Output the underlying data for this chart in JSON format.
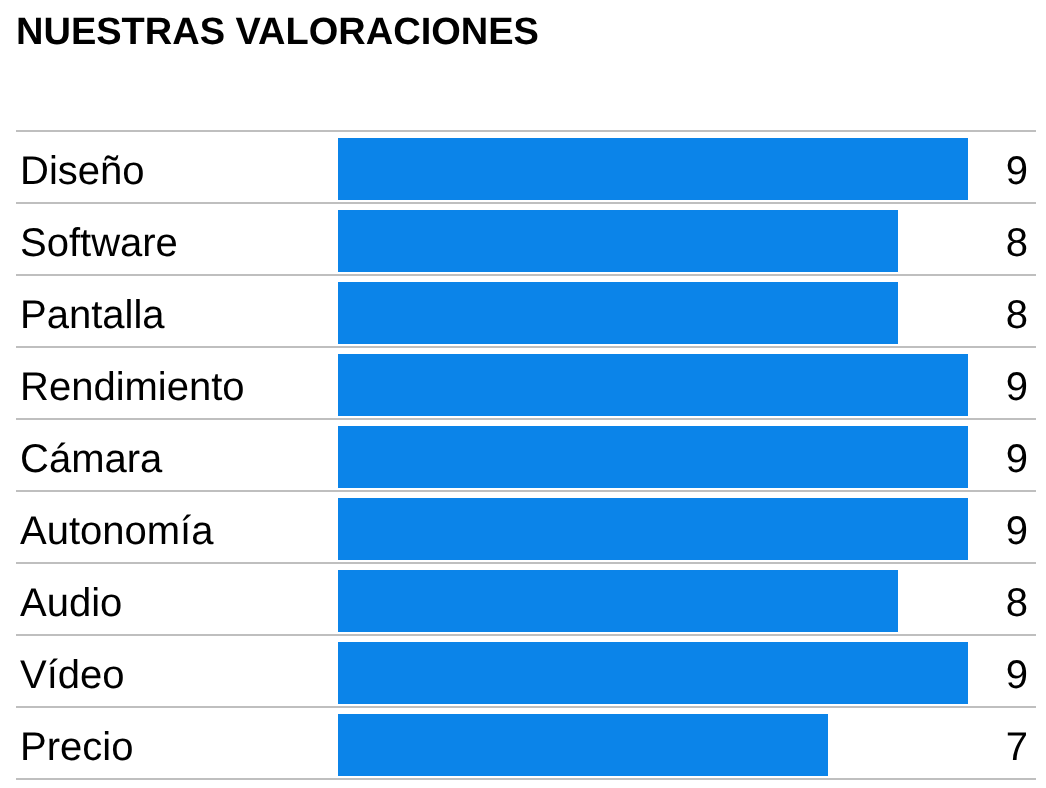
{
  "chart_data": {
    "type": "bar",
    "orientation": "horizontal",
    "title": "NUESTRAS VALORACIONES",
    "categories": [
      "Diseño",
      "Software",
      "Pantalla",
      "Rendimiento",
      "Cámara",
      "Autonomía",
      "Audio",
      "Vídeo",
      "Precio"
    ],
    "values": [
      9,
      8,
      8,
      9,
      9,
      9,
      8,
      9,
      7
    ],
    "color": "#0b84e9",
    "data_labels": true
  }
}
